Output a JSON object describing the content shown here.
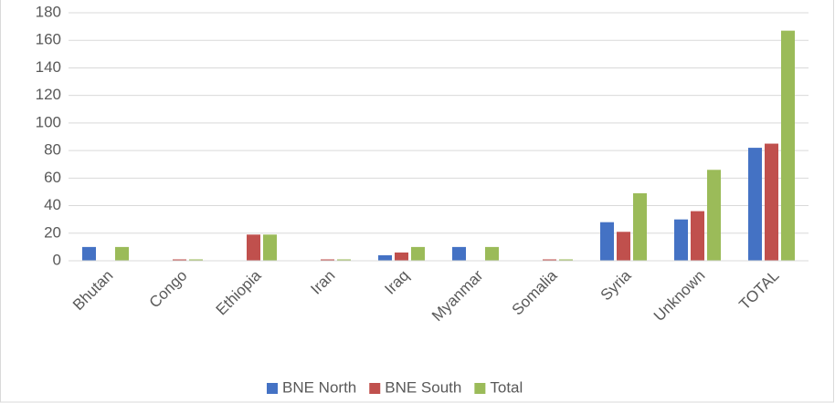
{
  "chart_data": {
    "type": "bar",
    "categories": [
      "Bhutan",
      "Congo",
      "Ethiopia",
      "Iran",
      "Iraq",
      "Myanmar",
      "Somalia",
      "Syria",
      "Unknown",
      "TOTAL"
    ],
    "series": [
      {
        "name": "BNE North",
        "color": "#4472c4",
        "values": [
          10,
          0,
          0,
          0,
          4,
          10,
          0,
          28,
          30,
          82
        ]
      },
      {
        "name": "BNE South",
        "color": "#c0504d",
        "values": [
          0,
          1,
          19,
          1,
          6,
          0,
          1,
          21,
          36,
          85
        ]
      },
      {
        "name": "Total",
        "color": "#9bbb59",
        "values": [
          10,
          1,
          19,
          1,
          10,
          10,
          1,
          49,
          66,
          167
        ]
      }
    ],
    "ylim": [
      0,
      180
    ],
    "yticks": [
      0,
      20,
      40,
      60,
      80,
      100,
      120,
      140,
      160,
      180
    ],
    "grid": true,
    "legend": "bottom"
  }
}
